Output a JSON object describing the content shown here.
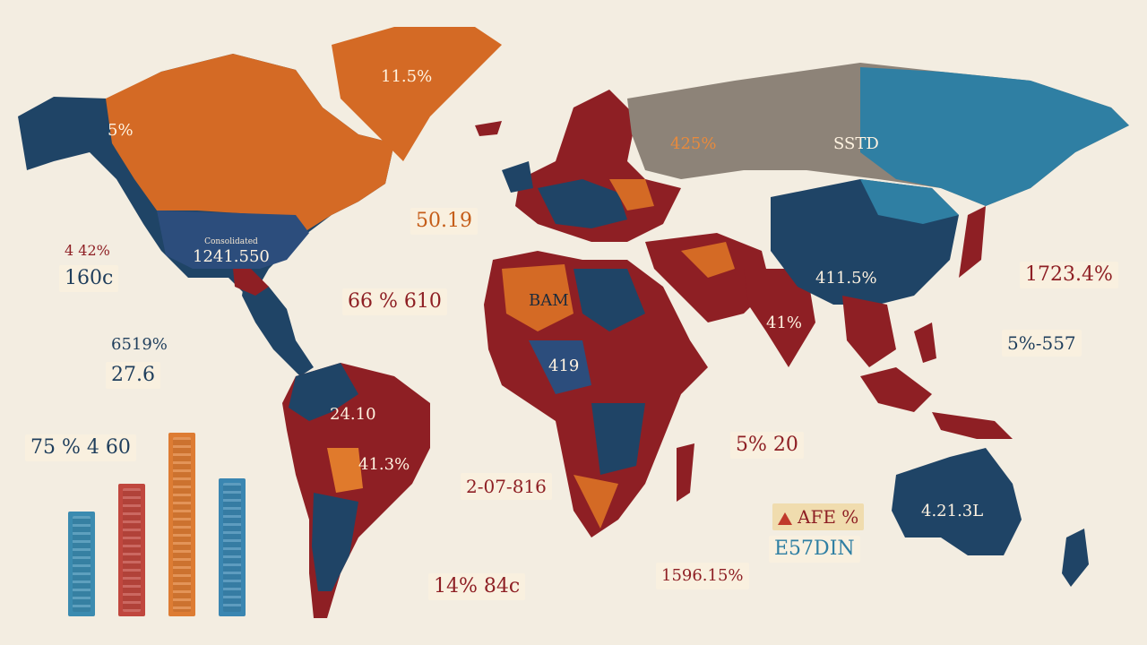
{
  "colors": {
    "background": "#f3ede1",
    "navy": "#1f4466",
    "red": "#8e1f24",
    "orange": "#d46a25",
    "teal": "#2f7fa3",
    "gray": "#8d8378"
  },
  "map_labels": {
    "greenland": {
      "label": "",
      "value": "11.5%"
    },
    "canada": {
      "label": "",
      "value": "5%"
    },
    "usa": {
      "label": "Consolidated",
      "value": "1241.550"
    },
    "russia_w": {
      "label": "",
      "value": "425%"
    },
    "russia_e": {
      "label": "",
      "value": "SSTD"
    },
    "china": {
      "label": "",
      "value": "411.5%"
    },
    "india": {
      "label": "",
      "value": "41%"
    },
    "africa_n": {
      "label": "",
      "value": "BAM"
    },
    "africa_c": {
      "label": "",
      "value": "419"
    },
    "brazil": {
      "label": "",
      "value": "24.10"
    },
    "brazil_s": {
      "label": "",
      "value": "41.3%"
    },
    "australia": {
      "label": "",
      "value": "4.21.3L"
    }
  },
  "callouts": {
    "europe_north": {
      "label": "",
      "value": "50.19"
    },
    "west_left_top": {
      "label": "",
      "value": "4 42%"
    },
    "west_left_mid": {
      "label": "",
      "value": "160c"
    },
    "atlantic": {
      "label": "",
      "value": "66 % 610"
    },
    "caribbean": {
      "label": "",
      "value": "27.6"
    },
    "caribbean_pct": {
      "label": "",
      "value": "6519%"
    },
    "left_bottom": {
      "label": "",
      "value": "75 % 4 60"
    },
    "africa_south": {
      "label": "",
      "value": "2-07-816"
    },
    "indian_ocean": {
      "label": "",
      "value": "5% 20"
    },
    "east_asia": {
      "label": "",
      "value": "1723.4%"
    },
    "se_asia": {
      "label": "",
      "value": "5%-557"
    },
    "south_pacific_a": {
      "label": "",
      "value": "AFE %"
    },
    "south_pacific_b": {
      "label": "",
      "value": "E57DIN"
    },
    "south_atlantic": {
      "label": "",
      "value": "1596.15%"
    },
    "south_bottom": {
      "label": "",
      "value": "14% 84c"
    }
  },
  "bar_chart": {
    "bars": [
      {
        "value": 0.57,
        "color": "#3b8bb0",
        "tag": ""
      },
      {
        "value": 0.72,
        "color": "#c0473e",
        "tag": ""
      },
      {
        "value": 1.0,
        "color": "#dd7c33",
        "tag": ""
      },
      {
        "value": 0.75,
        "color": "#3a86b1",
        "tag": ""
      }
    ]
  }
}
